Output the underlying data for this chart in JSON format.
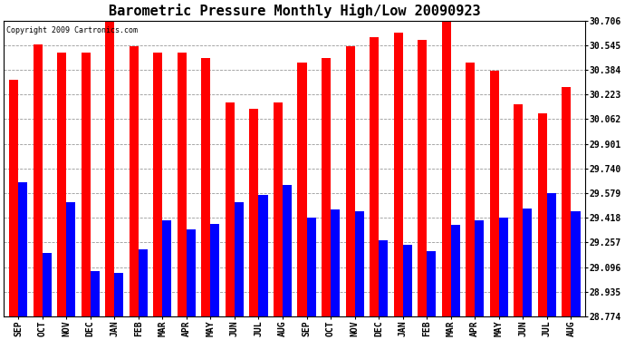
{
  "title": "Barometric Pressure Monthly High/Low 20090923",
  "copyright": "Copyright 2009 Cartronics.com",
  "months": [
    "SEP",
    "OCT",
    "NOV",
    "DEC",
    "JAN",
    "FEB",
    "MAR",
    "APR",
    "MAY",
    "JUN",
    "JUL",
    "AUG",
    "SEP",
    "OCT",
    "NOV",
    "DEC",
    "JAN",
    "FEB",
    "MAR",
    "APR",
    "MAY",
    "JUN",
    "JUL",
    "AUG"
  ],
  "highs": [
    30.32,
    30.55,
    30.5,
    30.5,
    30.7,
    30.54,
    30.5,
    30.5,
    30.46,
    30.17,
    30.13,
    30.17,
    30.43,
    30.46,
    30.54,
    30.6,
    30.63,
    30.58,
    30.7,
    30.43,
    30.38,
    30.16,
    30.1,
    30.27
  ],
  "lows": [
    29.65,
    29.19,
    29.52,
    29.07,
    29.06,
    29.21,
    29.4,
    29.34,
    29.38,
    29.52,
    29.57,
    29.63,
    29.42,
    29.47,
    29.46,
    29.27,
    29.24,
    29.2,
    29.37,
    29.4,
    29.42,
    29.48,
    29.58,
    29.46
  ],
  "high_color": "#FF0000",
  "low_color": "#0000FF",
  "bg_color": "#FFFFFF",
  "plot_bg_color": "#FFFFFF",
  "grid_color": "#999999",
  "ymin": 28.774,
  "ymax": 30.706,
  "yticks": [
    28.774,
    28.935,
    29.096,
    29.257,
    29.418,
    29.579,
    29.74,
    29.901,
    30.062,
    30.223,
    30.384,
    30.545,
    30.706
  ],
  "title_fontsize": 11,
  "copyright_fontsize": 6,
  "bar_width": 0.38
}
